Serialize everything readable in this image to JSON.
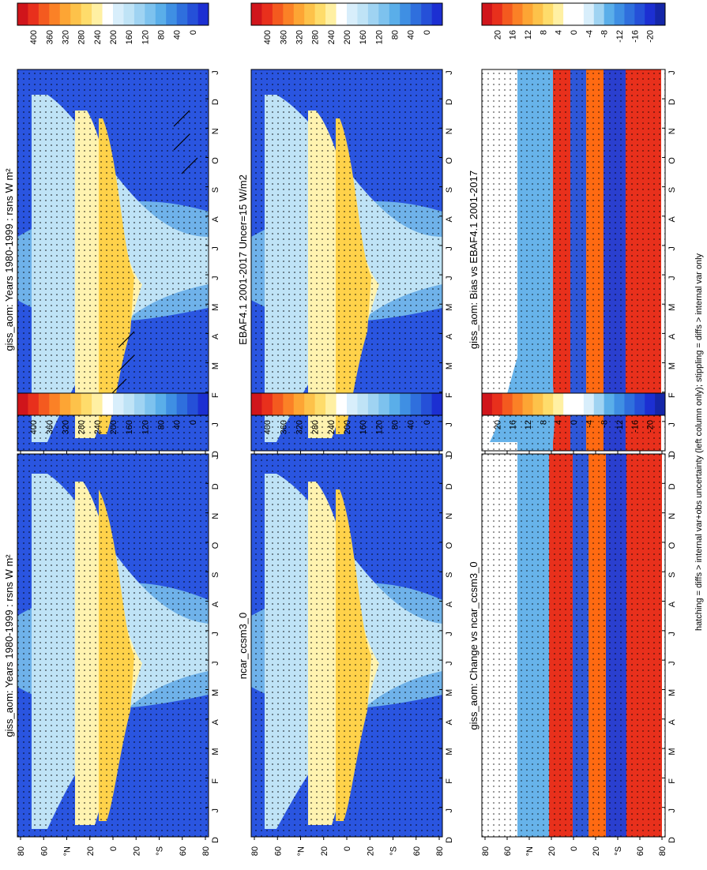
{
  "figure": {
    "footnote": "hatching = diffs > internal var+obs uncertainty (left column only); stippling = diffs > internal var only"
  },
  "chart_data": [
    {
      "type": "heatmap",
      "id": "p1",
      "title": "giss_aom: Years 1980-1999 : rsns W m²",
      "x_ticks": [
        "D",
        "J",
        "F",
        "M",
        "A",
        "M",
        "J",
        "J",
        "A",
        "S",
        "O",
        "N",
        "D",
        "J"
      ],
      "y_ticks": [
        "80",
        "60",
        "°N",
        "20",
        "0",
        "20",
        "°S",
        "60",
        "80"
      ],
      "colorbar_labels": [
        "400",
        "360",
        "320",
        "280",
        "240",
        "200",
        "160",
        "120",
        "80",
        "40",
        "0"
      ],
      "colorscale": "abs"
    },
    {
      "type": "heatmap",
      "id": "p2",
      "title": "giss_aom: Years 1980-1999 : rsns W m²",
      "x_ticks": [
        "D",
        "J",
        "F",
        "M",
        "A",
        "M",
        "J",
        "J",
        "A",
        "S",
        "O",
        "N",
        "D",
        "J"
      ],
      "y_ticks": [
        "80",
        "60",
        "°N",
        "20",
        "0",
        "20",
        "°S",
        "60",
        "80"
      ],
      "colorbar_labels": [
        "400",
        "360",
        "320",
        "280",
        "240",
        "200",
        "160",
        "120",
        "80",
        "40",
        "0"
      ],
      "colorscale": "abs"
    },
    {
      "type": "heatmap",
      "id": "p3",
      "title": "EBAF4.1 2001-2017 Uncer=15 W/m2",
      "x_ticks": [
        "D",
        "J",
        "F",
        "M",
        "A",
        "M",
        "J",
        "J",
        "A",
        "S",
        "O",
        "N",
        "D",
        "J"
      ],
      "y_ticks": [
        "80",
        "60",
        "°N",
        "20",
        "0",
        "20",
        "°S",
        "60",
        "80"
      ],
      "colorbar_labels": [
        "400",
        "360",
        "320",
        "280",
        "240",
        "200",
        "160",
        "120",
        "80",
        "40",
        "0"
      ],
      "colorscale": "abs"
    },
    {
      "type": "heatmap",
      "id": "p4",
      "title": "ncar_ccsm3_0",
      "x_ticks": [
        "D",
        "J",
        "F",
        "M",
        "A",
        "M",
        "J",
        "J",
        "A",
        "S",
        "O",
        "N",
        "D",
        "J"
      ],
      "y_ticks": [
        "80",
        "60",
        "°N",
        "20",
        "0",
        "20",
        "°S",
        "60",
        "80"
      ],
      "colorbar_labels": [
        "400",
        "360",
        "320",
        "280",
        "240",
        "200",
        "160",
        "120",
        "80",
        "40",
        "0"
      ],
      "colorscale": "abs"
    },
    {
      "type": "heatmap",
      "id": "p5",
      "title": "giss_aom: Bias vs EBAF4.1 2001-2017",
      "x_ticks": [
        "D",
        "J",
        "F",
        "M",
        "A",
        "M",
        "J",
        "J",
        "A",
        "S",
        "O",
        "N",
        "D",
        "J"
      ],
      "y_ticks": [
        "80",
        "60",
        "°N",
        "20",
        "0",
        "20",
        "°S",
        "60",
        "80"
      ],
      "colorbar_labels": [
        "20",
        "16",
        "12",
        "8",
        "4",
        "0",
        "-4",
        "-8",
        "-12",
        "-16",
        "-20"
      ],
      "colorscale": "diff"
    },
    {
      "type": "heatmap",
      "id": "p6",
      "title": "giss_aom: Change vs ncar_ccsm3_0",
      "x_ticks": [
        "D",
        "J",
        "F",
        "M",
        "A",
        "M",
        "J",
        "J",
        "A",
        "S",
        "O",
        "N",
        "D",
        "J"
      ],
      "y_ticks": [
        "80",
        "60",
        "°N",
        "20",
        "0",
        "20",
        "°S",
        "60",
        "80"
      ],
      "colorbar_labels": [
        "20",
        "16",
        "12",
        "8",
        "4",
        "0",
        "-4",
        "-8",
        "-12",
        "-16",
        "-20"
      ],
      "colorscale": "diff"
    }
  ]
}
